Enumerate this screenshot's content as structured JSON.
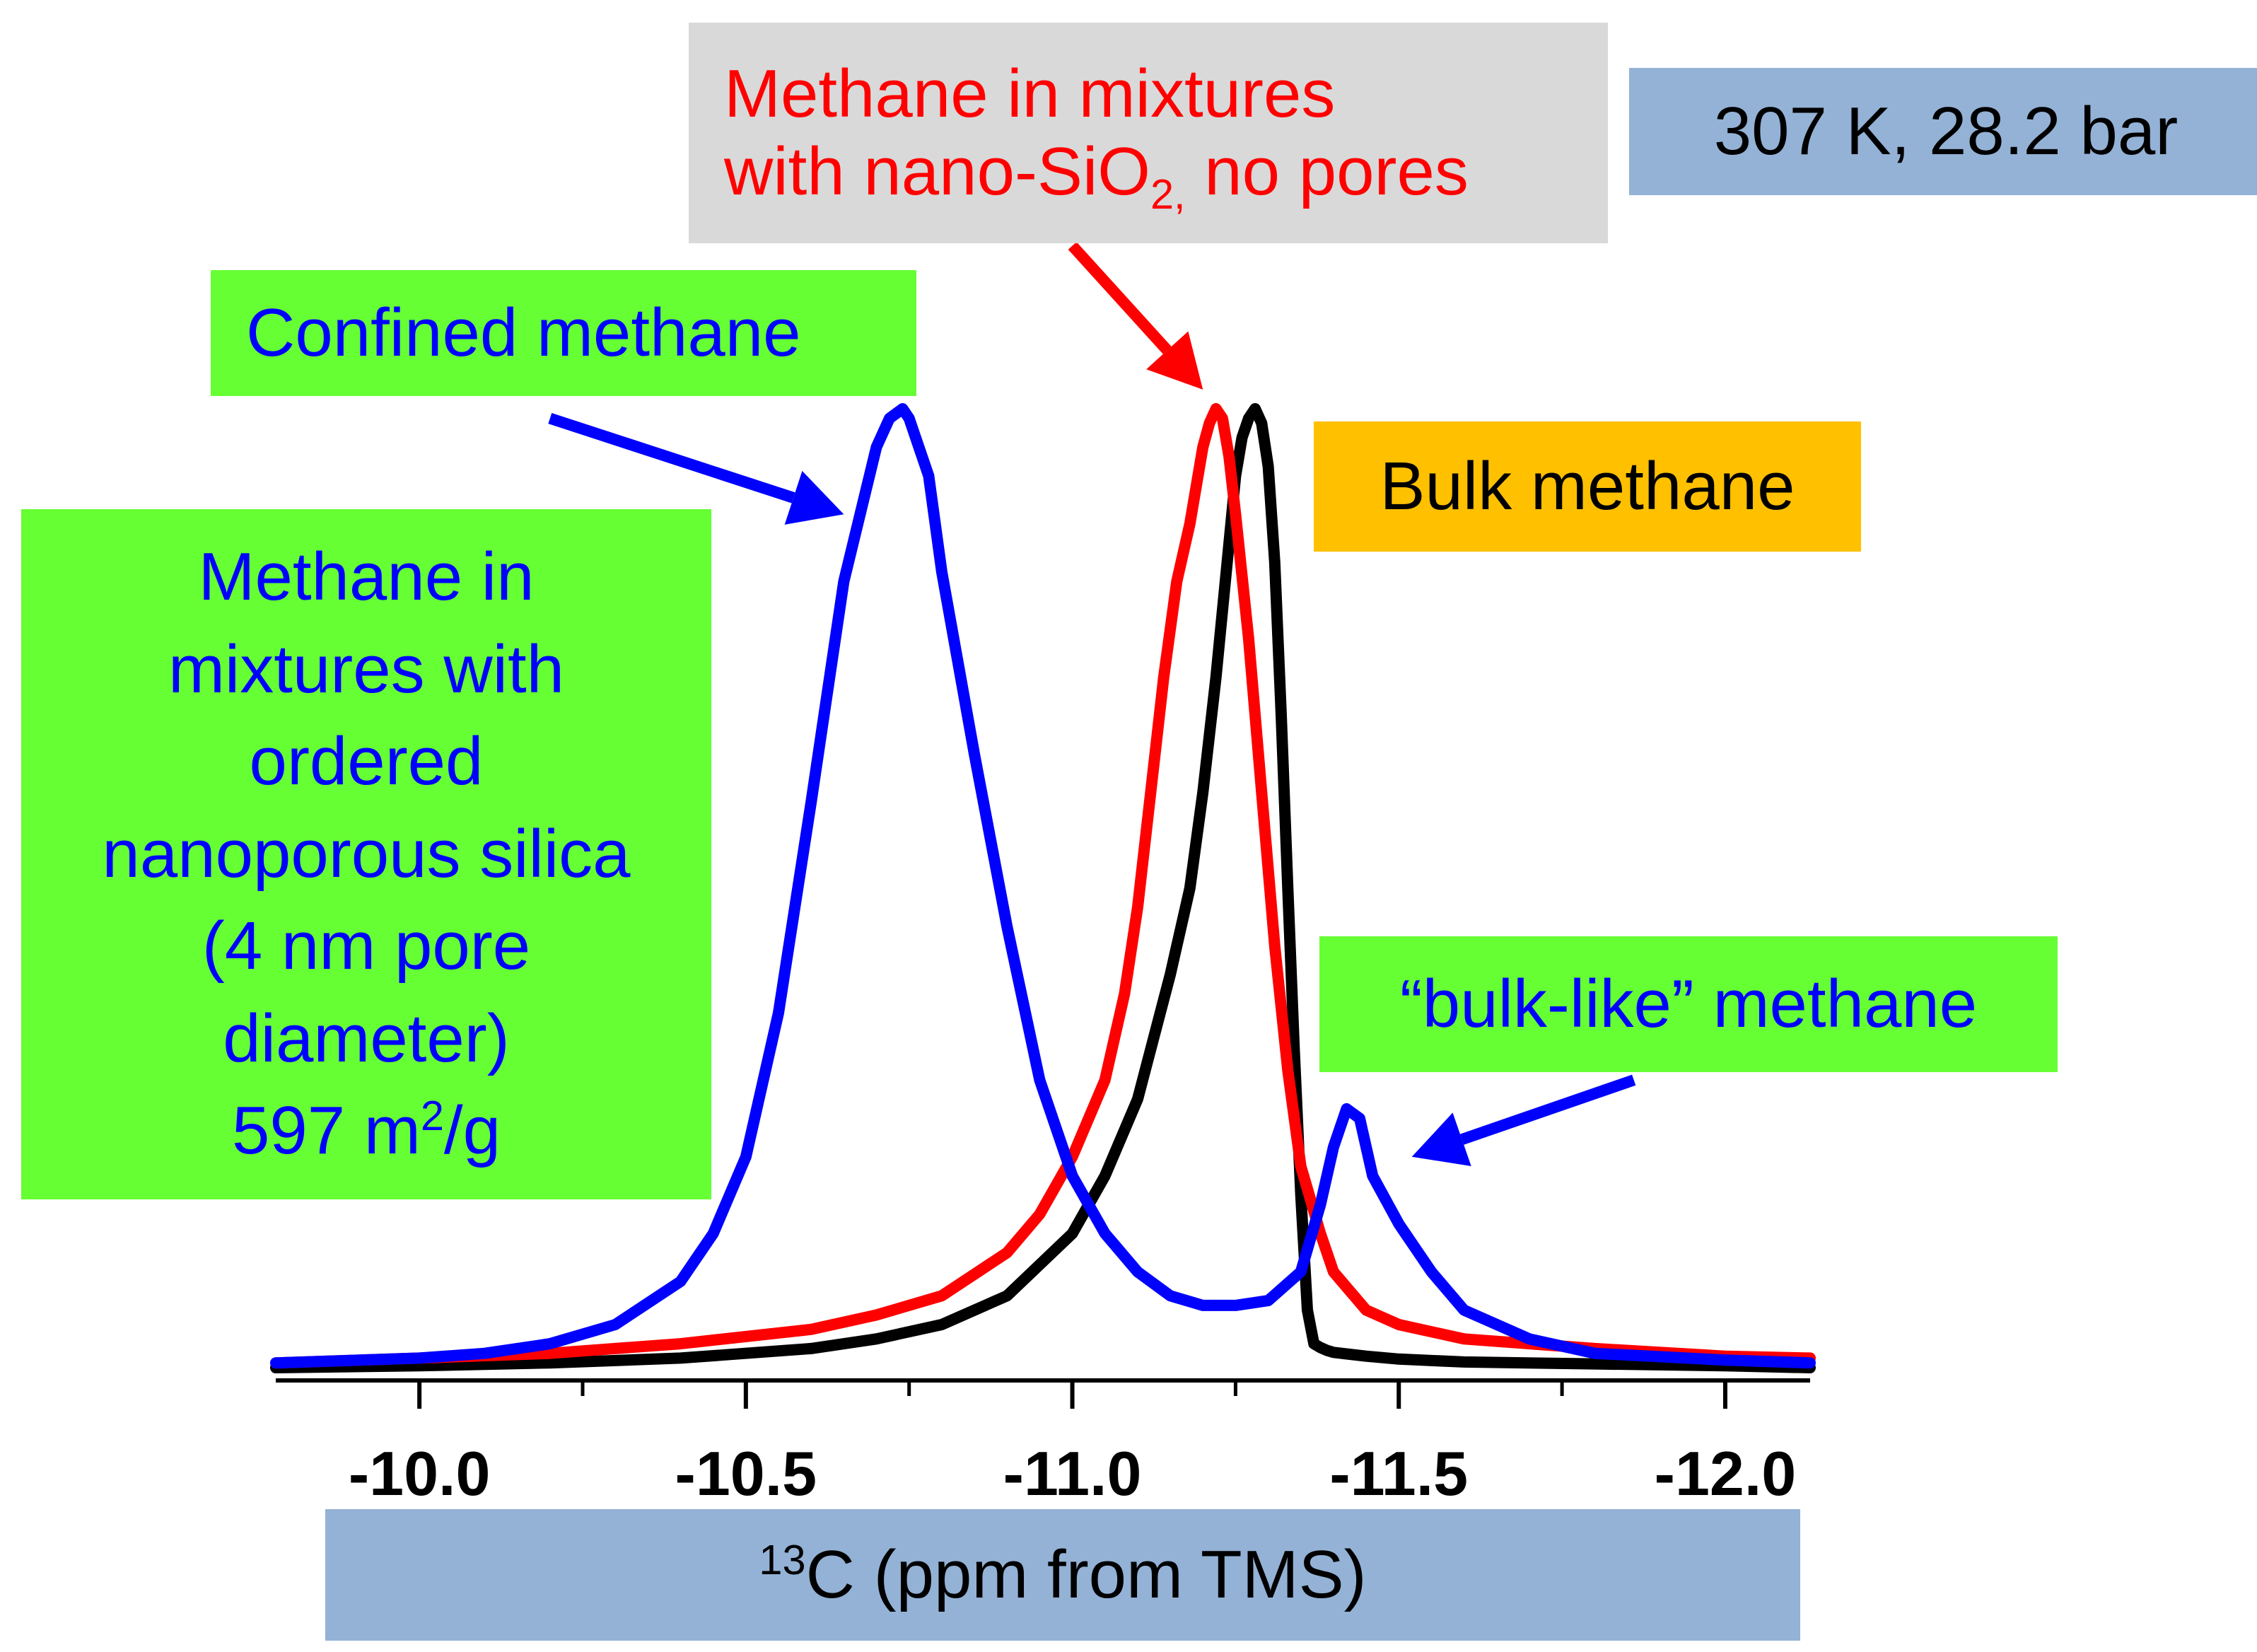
{
  "annotations": {
    "conditions": "307 K, 28.2 bar",
    "nano_line1": "Methane in mixtures",
    "nano_line2_pre": "with nano-SiO",
    "nano_line2_sub": "2,",
    "nano_line2_post": " no pores",
    "confined": "Confined methane",
    "bulk": "Bulk methane",
    "porous_line1": "Methane in",
    "porous_line2": "mixtures with",
    "porous_line3": "ordered",
    "porous_line4": "nanoporous silica",
    "porous_line5": "(4 nm pore",
    "porous_line6": "diameter)",
    "porous_line7_pre": "597 m",
    "porous_line7_sup": "2",
    "porous_line7_post": "/g",
    "bulklike": "“bulk-like” methane"
  },
  "colors": {
    "confined_series": "#0000ff",
    "nano_series": "#ff0000",
    "bulk_series": "#000000",
    "green_box": "#66ff33",
    "blue_box": "#94b2d6",
    "grey_box": "#d9d9d9",
    "orange_box": "#ffc000"
  },
  "chart_data": {
    "type": "line",
    "xlabel_sup": "13",
    "xlabel_text": "C (ppm from TMS)",
    "xlim": [
      -9.78,
      -12.13
    ],
    "x_reversed": true,
    "ylim": [
      0,
      1.02
    ],
    "grid": false,
    "legend": "none",
    "xticks": [
      -10.0,
      -10.5,
      -11.0,
      -11.5,
      -12.0
    ],
    "xtick_labels": [
      "-10.0",
      "-10.5",
      "-11.0",
      "-11.5",
      "-12.0"
    ],
    "series": [
      {
        "key": "bulk",
        "color": "#000000",
        "x": [
          -9.78,
          -10.0,
          -10.2,
          -10.4,
          -10.6,
          -10.7,
          -10.8,
          -10.9,
          -11.0,
          -11.05,
          -11.1,
          -11.15,
          -11.18,
          -11.2,
          -11.22,
          -11.24,
          -11.25,
          -11.26,
          -11.27,
          -11.28,
          -11.29,
          -11.3,
          -11.31,
          -11.32,
          -11.33,
          -11.34,
          -11.35,
          -11.36,
          -11.37,
          -11.38,
          -11.39,
          -11.4,
          -11.45,
          -11.5,
          -11.6,
          -11.8,
          -12.0,
          -12.13
        ],
        "y": [
          0.0,
          0.002,
          0.005,
          0.01,
          0.02,
          0.03,
          0.045,
          0.075,
          0.14,
          0.2,
          0.28,
          0.41,
          0.5,
          0.6,
          0.72,
          0.86,
          0.93,
          0.97,
          0.99,
          1.0,
          0.985,
          0.94,
          0.84,
          0.68,
          0.5,
          0.33,
          0.18,
          0.06,
          0.025,
          0.021,
          0.018,
          0.016,
          0.012,
          0.009,
          0.006,
          0.004,
          0.002,
          0.0
        ]
      },
      {
        "key": "nano",
        "color": "#ff0000",
        "x": [
          -9.78,
          -10.0,
          -10.2,
          -10.4,
          -10.6,
          -10.7,
          -10.8,
          -10.9,
          -10.95,
          -11.0,
          -11.05,
          -11.08,
          -11.1,
          -11.12,
          -11.14,
          -11.16,
          -11.18,
          -11.2,
          -11.21,
          -11.22,
          -11.23,
          -11.24,
          -11.25,
          -11.27,
          -11.29,
          -11.31,
          -11.33,
          -11.35,
          -11.38,
          -11.4,
          -11.45,
          -11.5,
          -11.6,
          -11.8,
          -12.0,
          -12.13
        ],
        "y": [
          0.005,
          0.01,
          0.015,
          0.025,
          0.04,
          0.055,
          0.075,
          0.12,
          0.16,
          0.22,
          0.3,
          0.39,
          0.48,
          0.6,
          0.72,
          0.82,
          0.88,
          0.96,
          0.985,
          1.0,
          0.99,
          0.95,
          0.89,
          0.76,
          0.6,
          0.44,
          0.31,
          0.21,
          0.14,
          0.1,
          0.06,
          0.045,
          0.03,
          0.02,
          0.012,
          0.01
        ]
      },
      {
        "key": "confined",
        "color": "#0000ff",
        "x": [
          -9.78,
          -10.0,
          -10.1,
          -10.2,
          -10.3,
          -10.4,
          -10.45,
          -10.5,
          -10.55,
          -10.6,
          -10.65,
          -10.7,
          -10.72,
          -10.74,
          -10.75,
          -10.76,
          -10.78,
          -10.8,
          -10.85,
          -10.9,
          -10.95,
          -11.0,
          -11.05,
          -11.1,
          -11.15,
          -11.2,
          -11.25,
          -11.3,
          -11.35,
          -11.38,
          -11.4,
          -11.42,
          -11.44,
          -11.46,
          -11.5,
          -11.55,
          -11.6,
          -11.7,
          -11.8,
          -12.0,
          -12.13
        ],
        "y": [
          0.005,
          0.01,
          0.015,
          0.025,
          0.045,
          0.09,
          0.14,
          0.22,
          0.37,
          0.59,
          0.82,
          0.96,
          0.99,
          1.0,
          0.99,
          0.97,
          0.93,
          0.83,
          0.64,
          0.46,
          0.3,
          0.2,
          0.14,
          0.1,
          0.075,
          0.065,
          0.065,
          0.07,
          0.1,
          0.17,
          0.23,
          0.27,
          0.26,
          0.2,
          0.15,
          0.1,
          0.06,
          0.03,
          0.015,
          0.008,
          0.005
        ]
      }
    ],
    "arrows": [
      {
        "color": "#0000ff",
        "from": [
          -10.2,
          0.99
        ],
        "to": [
          -10.65,
          0.89
        ]
      },
      {
        "color": "#ff0000",
        "from": [
          -11.0,
          1.17
        ],
        "to": [
          -11.2,
          1.02
        ]
      },
      {
        "color": "#0000ff",
        "from": [
          -11.86,
          0.3
        ],
        "to": [
          -11.52,
          0.22
        ]
      }
    ]
  }
}
